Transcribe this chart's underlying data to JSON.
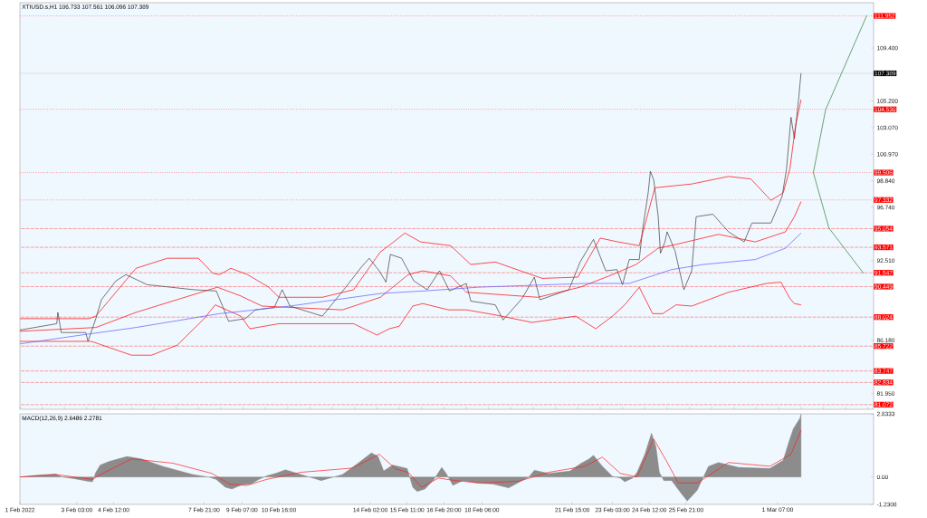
{
  "chart_data": [
    {
      "type": "line",
      "title": "XTIUSD.s,H1  106.733 107.561 106.096 107.389",
      "xlim": [
        "2022-02-01T00:00",
        "2022-03-04T21:00"
      ],
      "ylim": [
        80.7,
        113.0
      ],
      "tick_labels": "y",
      "yticks": [
        {
          "value": 109.4,
          "label": "109.400"
        },
        {
          "value": 105.2,
          "label": "105.200"
        },
        {
          "value": 103.07,
          "label": "103.070"
        },
        {
          "value": 100.97,
          "label": "100.970"
        },
        {
          "value": 98.84,
          "label": "98.840"
        },
        {
          "value": 96.74,
          "label": "96.740"
        },
        {
          "value": 92.51,
          "label": "92.510"
        },
        {
          "value": 86.18,
          "label": "86.180"
        },
        {
          "value": 81.95,
          "label": "81.950"
        }
      ],
      "series": [
        {
          "color": "#3c3c3c",
          "x": [
            "2022-02-01T00:00",
            "2022-02-02T09:00",
            "2022-02-02T10:00",
            "2022-02-02T13:00",
            "2022-02-03T11:00",
            "2022-02-03T13:00",
            "2022-02-03T20:00",
            "2022-02-04T01:00",
            "2022-02-04T14:00",
            "2022-02-04T23:00",
            "2022-02-05T18:00",
            "2022-02-07T12:00",
            "2022-02-08T08:00",
            "2022-02-08T14:00",
            "2022-02-08T19:00",
            "2022-02-09T10:00",
            "2022-02-09T19:00",
            "2022-02-10T12:00",
            "2022-02-10T19:00",
            "2022-02-11T02:00",
            "2022-02-12T07:00",
            "2022-02-13T04:00",
            "2022-02-13T18:00",
            "2022-02-14T01:00",
            "2022-02-14T10:00",
            "2022-02-14T16:00",
            "2022-02-14T20:00",
            "2022-02-15T06:00",
            "2022-02-15T17:00",
            "2022-02-16T05:00",
            "2022-02-16T16:00",
            "2022-02-17T01:00",
            "2022-02-17T16:00",
            "2022-02-17T20:00",
            "2022-02-18T18:00",
            "2022-02-19T01:00",
            "2022-02-19T18:00",
            "2022-02-20T05:00",
            "2022-02-20T10:00",
            "2022-02-21T12:00",
            "2022-02-21T22:00",
            "2022-02-22T10:00",
            "2022-02-22T21:00",
            "2022-02-23T07:00",
            "2022-02-23T12:00",
            "2022-02-23T18:00",
            "2022-02-24T03:00",
            "2022-02-24T06:00",
            "2022-02-24T11:00",
            "2022-02-24T13:00",
            "2022-02-24T16:00",
            "2022-02-24T20:00",
            "2022-02-24T22:00",
            "2022-02-25T02:00",
            "2022-02-25T04:00",
            "2022-02-25T11:00",
            "2022-02-25T19:00",
            "2022-02-26T02:00",
            "2022-02-26T06:00",
            "2022-02-26T21:00",
            "2022-02-27T11:00",
            "2022-02-28T01:00",
            "2022-02-28T08:00",
            "2022-03-01T01:00",
            "2022-03-01T11:00",
            "2022-03-01T15:00",
            "2022-03-01T19:00",
            "2022-03-01T22:00",
            "2022-03-02T02:00",
            "2022-03-02T03:00",
            "2022-03-02T04:00"
          ],
          "values": [
            87.0,
            87.5,
            88.4,
            86.8,
            86.8,
            86.1,
            87.9,
            89.4,
            90.9,
            91.4,
            90.6,
            90.2,
            90.1,
            88.8,
            87.7,
            87.9,
            88.6,
            88.8,
            90.2,
            88.9,
            88.1,
            90.4,
            92.0,
            92.7,
            91.7,
            90.8,
            93.0,
            92.7,
            90.9,
            90.2,
            91.7,
            90.1,
            90.7,
            89.3,
            89.0,
            87.8,
            89.5,
            91.2,
            89.4,
            90.2,
            92.4,
            94.2,
            91.7,
            91.8,
            90.6,
            92.6,
            92.6,
            95.0,
            97.9,
            99.6,
            98.9,
            96.0,
            93.1,
            94.0,
            94.8,
            93.3,
            90.2,
            91.7,
            96.0,
            96.2,
            94.8,
            94.0,
            95.5,
            95.5,
            97.6,
            99.8,
            103.9,
            102.2,
            105.5,
            106.5,
            107.4
          ]
        },
        {
          "color": "#ff0000",
          "x": [
            "2022-02-01T00:00",
            "2022-02-03T14:00",
            "2022-02-03T20:00",
            "2022-02-05T08:00",
            "2022-02-06T12:00",
            "2022-02-07T16:00",
            "2022-02-08T05:00",
            "2022-02-08T11:00",
            "2022-02-08T21:00",
            "2022-02-09T12:00",
            "2022-02-10T07:00",
            "2022-02-10T16:00",
            "2022-02-12T07:00",
            "2022-02-13T11:00",
            "2022-02-14T11:00",
            "2022-02-14T23:00",
            "2022-02-15T09:00",
            "2022-02-15T23:00",
            "2022-02-17T02:00",
            "2022-02-17T20:00",
            "2022-02-18T18:00",
            "2022-02-20T12:00",
            "2022-02-21T20:00",
            "2022-02-22T16:00",
            "2022-02-23T08:00",
            "2022-02-24T03:00",
            "2022-02-24T17:00",
            "2022-02-26T02:00",
            "2022-02-27T11:00",
            "2022-02-28T07:00",
            "2022-03-01T01:00",
            "2022-03-01T12:00",
            "2022-03-01T18:00",
            "2022-03-01T23:00",
            "2022-03-02T04:00"
          ],
          "values": [
            87.9,
            87.9,
            88.1,
            91.9,
            92.7,
            92.7,
            91.5,
            91.4,
            91.9,
            91.4,
            90.4,
            89.6,
            89.6,
            90.2,
            93.2,
            94.0,
            94.7,
            94.0,
            93.7,
            92.2,
            92.4,
            91.1,
            91.2,
            94.3,
            94.0,
            93.7,
            98.3,
            98.6,
            99.2,
            99.0,
            97.3,
            97.9,
            99.8,
            103.2,
            105.3
          ]
        },
        {
          "color": "#ff0000",
          "x": [
            "2022-02-01T00:00",
            "2022-02-03T20:00",
            "2022-02-05T08:00",
            "2022-02-08T09:00",
            "2022-02-09T06:00",
            "2022-02-10T01:00",
            "2022-02-13T01:00",
            "2022-02-14T11:00",
            "2022-02-15T12:00",
            "2022-02-16T01:00",
            "2022-02-17T02:00",
            "2022-02-17T16:00",
            "2022-02-20T08:00",
            "2022-02-21T22:00",
            "2022-02-23T03:00",
            "2022-02-24T00:00",
            "2022-02-24T20:00",
            "2022-02-25T12:00",
            "2022-02-27T02:00",
            "2022-02-28T11:00",
            "2022-03-01T14:00",
            "2022-03-01T22:00",
            "2022-03-02T04:00"
          ],
          "values": [
            86.9,
            87.2,
            88.4,
            90.4,
            89.7,
            88.9,
            88.6,
            89.6,
            91.4,
            91.7,
            91.3,
            90.0,
            89.6,
            90.4,
            91.4,
            92.2,
            93.5,
            93.8,
            94.6,
            94.0,
            94.8,
            96.0,
            97.2
          ]
        },
        {
          "color": "#ff0000",
          "x": [
            "2022-02-01T00:00",
            "2022-02-03T16:00",
            "2022-02-05T04:00",
            "2022-02-05T22:00",
            "2022-02-06T21:00",
            "2022-02-07T21:00",
            "2022-02-08T07:00",
            "2022-02-09T06:00",
            "2022-02-09T14:00",
            "2022-02-10T16:00",
            "2022-02-13T11:00",
            "2022-02-14T08:00",
            "2022-02-14T19:00",
            "2022-02-15T04:00",
            "2022-02-15T16:00",
            "2022-02-16T01:00",
            "2022-02-17T00:00",
            "2022-02-17T16:00",
            "2022-02-18T18:00",
            "2022-02-20T03:00",
            "2022-02-21T18:00",
            "2022-02-22T12:00",
            "2022-02-23T03:00",
            "2022-02-23T14:00",
            "2022-02-24T03:00",
            "2022-02-24T15:00",
            "2022-02-25T00:00",
            "2022-02-25T12:00",
            "2022-02-26T02:00",
            "2022-02-27T11:00",
            "2022-02-28T21:00",
            "2022-03-01T10:00",
            "2022-03-01T18:00",
            "2022-03-01T22:00",
            "2022-03-02T04:00"
          ],
          "values": [
            86.1,
            86.1,
            85.0,
            85.0,
            85.8,
            87.9,
            89.0,
            88.1,
            87.1,
            87.5,
            87.5,
            86.6,
            87.1,
            87.3,
            88.9,
            89.1,
            88.6,
            88.6,
            88.2,
            87.6,
            88.1,
            87.1,
            88.1,
            89.0,
            90.4,
            88.3,
            88.3,
            89.0,
            88.9,
            90.0,
            90.7,
            90.8,
            89.5,
            89.1,
            89.0
          ]
        },
        {
          "color": "#5a5aff",
          "x": [
            "2022-02-01T00:00",
            "2022-02-03T07:00",
            "2022-02-05T08:00",
            "2022-02-08T11:00",
            "2022-02-11T02:00",
            "2022-02-14T11:00",
            "2022-02-16T01:00",
            "2022-02-18T03:00",
            "2022-02-22T02:00",
            "2022-02-23T18:00",
            "2022-02-25T08:00",
            "2022-02-26T12:00",
            "2022-02-28T11:00",
            "2022-03-01T14:00",
            "2022-03-02T04:00"
          ],
          "values": [
            85.9,
            86.6,
            87.2,
            88.3,
            88.9,
            89.9,
            90.1,
            90.4,
            90.7,
            90.7,
            91.8,
            92.2,
            92.6,
            93.5,
            94.7
          ]
        },
        {
          "color": "#2e7d32",
          "x": [
            "2022-03-02T15:00",
            "2022-03-03T02:00",
            "2022-03-04T15:00"
          ],
          "values": [
            99.5,
            104.5,
            112.0
          ]
        },
        {
          "color": "#2e7d32",
          "x": [
            "2022-03-02T15:00",
            "2022-03-03T05:00",
            "2022-03-04T12:00"
          ],
          "values": [
            99.5,
            95.1,
            91.5
          ]
        }
      ],
      "ref_lines": [
        {
          "axis": "y",
          "value": 111.952,
          "label": "111.952",
          "color": "#ff6060",
          "line_style": "dotted"
        },
        {
          "axis": "y",
          "value": 107.389,
          "label": "107.389",
          "color": "#c8c8c8",
          "line_style": "solid"
        },
        {
          "axis": "y",
          "value": 104.53,
          "label": "104.530",
          "color": "#ff6060",
          "line_style": "dotted"
        },
        {
          "axis": "y",
          "value": 99.506,
          "label": "99.506",
          "color": "#ff6060",
          "line_style": "dotted"
        },
        {
          "axis": "y",
          "value": 97.332,
          "label": "97.332",
          "color": "#ff6060",
          "line_style": "dotted"
        },
        {
          "axis": "y",
          "value": 95.054,
          "label": "95.054",
          "color": "#ff6060",
          "line_style": "dashed"
        },
        {
          "axis": "y",
          "value": 93.571,
          "label": "93.571",
          "color": "#ff6060",
          "line_style": "dashed"
        },
        {
          "axis": "y",
          "value": 91.547,
          "label": "91.547",
          "color": "#ff6060",
          "line_style": "dashed"
        },
        {
          "axis": "y",
          "value": 90.449,
          "label": "90.449",
          "color": "#ff6060",
          "line_style": "dashed"
        },
        {
          "axis": "y",
          "value": 88.024,
          "label": "88.024",
          "color": "#ff6060",
          "line_style": "dashed"
        },
        {
          "axis": "y",
          "value": 85.722,
          "label": "85.722",
          "color": "#ff6060",
          "line_style": "dashed"
        },
        {
          "axis": "y",
          "value": 83.747,
          "label": "83.747",
          "color": "#ff6060",
          "line_style": "dashed"
        },
        {
          "axis": "y",
          "value": 82.834,
          "label": "82.834",
          "color": "#ff6060",
          "line_style": "dashed"
        },
        {
          "axis": "y",
          "value": 81.072,
          "label": "81.072",
          "color": "#ff6060",
          "line_style": "dashed"
        }
      ]
    },
    {
      "type": "area",
      "title": "MACD(12,26,9) 2.6486 2.2781",
      "xlim": [
        "2022-02-01T00:00",
        "2022-03-04T21:00"
      ],
      "ylim": [
        -1.2308,
        2.8333
      ],
      "xticks": [
        {
          "value": "2022-02-01T00:00",
          "label": "1 Feb 2022"
        },
        {
          "value": "2022-02-03T03:00",
          "label": "3 Feb 03:00"
        },
        {
          "value": "2022-02-04T12:00",
          "label": "4 Feb 12:00"
        },
        {
          "value": "2022-02-07T21:00",
          "label": "7 Feb 21:00"
        },
        {
          "value": "2022-02-09T07:00",
          "label": "9 Feb 07:00"
        },
        {
          "value": "2022-02-10T16:00",
          "label": "10 Feb 16:00"
        },
        {
          "value": "2022-02-14T02:00",
          "label": "14 Feb 02:00"
        },
        {
          "value": "2022-02-15T11:00",
          "label": "15 Feb 11:00"
        },
        {
          "value": "2022-02-16T20:00",
          "label": "16 Feb 20:00"
        },
        {
          "value": "2022-02-18T06:00",
          "label": "18 Feb 06:00"
        },
        {
          "value": "2022-02-21T15:00",
          "label": "21 Feb 15:00"
        },
        {
          "value": "2022-02-23T03:00",
          "label": "23 Feb 03:00"
        },
        {
          "value": "2022-02-24T12:00",
          "label": "24 Feb 12:00"
        },
        {
          "value": "2022-02-25T21:00",
          "label": "25 Feb 21:00"
        },
        {
          "value": "2022-03-01T07:00",
          "label": "1 Mar 07:00"
        }
      ],
      "yticks": [
        {
          "value": -1.2308,
          "label": "-1.2308"
        },
        {
          "value": 0,
          "label": "0.00"
        },
        {
          "value": 2.8333,
          "label": "2.8333"
        }
      ],
      "series": [
        {
          "color": "#8c8c8c",
          "x": [
            "2022-02-01T00:00",
            "2022-02-01T15:00",
            "2022-02-02T08:00",
            "2022-02-02T14:00",
            "2022-02-03T01:00",
            "2022-02-03T13:00",
            "2022-02-03T17:00",
            "2022-02-03T20:00",
            "2022-02-04T00:00",
            "2022-02-04T08:00",
            "2022-02-05T00:00",
            "2022-02-05T13:00",
            "2022-02-06T08:00",
            "2022-02-07T11:00",
            "2022-02-08T01:00",
            "2022-02-08T08:00",
            "2022-02-08T16:00",
            "2022-02-08T22:00",
            "2022-02-09T07:00",
            "2022-02-09T15:00",
            "2022-02-09T22:00",
            "2022-02-10T05:00",
            "2022-02-10T13:00",
            "2022-02-10T22:00",
            "2022-02-11T12:00",
            "2022-02-12T06:00",
            "2022-02-13T01:00",
            "2022-02-13T15:00",
            "2022-02-14T03:00",
            "2022-02-14T09:00",
            "2022-02-14T14:00",
            "2022-02-14T22:00",
            "2022-02-15T03:00",
            "2022-02-15T11:00",
            "2022-02-15T16:00",
            "2022-02-15T20:00",
            "2022-02-16T03:00",
            "2022-02-16T11:00",
            "2022-02-16T18:00",
            "2022-02-16T22:00",
            "2022-02-17T04:00",
            "2022-02-17T13:00",
            "2022-02-18T01:00",
            "2022-02-18T16:00",
            "2022-02-19T06:00",
            "2022-02-20T00:00",
            "2022-02-20T05:00",
            "2022-02-20T18:00",
            "2022-02-21T13:00",
            "2022-02-21T22:00",
            "2022-02-22T06:00",
            "2022-02-22T10:00",
            "2022-02-22T18:00",
            "2022-02-23T03:00",
            "2022-02-23T10:00",
            "2022-02-23T14:00",
            "2022-02-23T21:00",
            "2022-02-24T01:00",
            "2022-02-24T08:00",
            "2022-02-24T14:00",
            "2022-02-24T18:00",
            "2022-02-24T21:00",
            "2022-02-25T01:00",
            "2022-02-25T08:00",
            "2022-02-25T16:00",
            "2022-02-25T22:00",
            "2022-02-26T07:00",
            "2022-02-26T17:00",
            "2022-02-27T02:00",
            "2022-02-27T20:00",
            "2022-03-01T00:00",
            "2022-03-01T12:00",
            "2022-03-01T17:00",
            "2022-03-01T21:00",
            "2022-03-02T03:00",
            "2022-03-02T04:00"
          ],
          "values": [
            0.0,
            0.08,
            0.13,
            0.0,
            -0.08,
            -0.19,
            -0.22,
            0.21,
            0.54,
            0.7,
            0.92,
            0.81,
            0.48,
            0.11,
            0.0,
            -0.11,
            -0.46,
            -0.54,
            -0.35,
            -0.32,
            -0.11,
            0.05,
            0.16,
            0.32,
            0.11,
            -0.16,
            0.11,
            0.62,
            1.08,
            0.92,
            0.27,
            0.54,
            0.48,
            0.38,
            -0.46,
            -0.65,
            -0.54,
            -0.11,
            0.43,
            0.16,
            -0.38,
            -0.16,
            -0.27,
            -0.32,
            -0.49,
            0.0,
            0.3,
            0.16,
            0.27,
            0.59,
            0.81,
            0.97,
            0.48,
            0.03,
            -0.05,
            -0.22,
            -0.05,
            0.21,
            1.02,
            1.97,
            1.35,
            0.21,
            -0.16,
            -0.16,
            -0.7,
            -1.08,
            -0.59,
            0.48,
            0.65,
            0.43,
            0.38,
            0.75,
            1.56,
            2.16,
            2.64,
            2.83
          ]
        },
        {
          "type": "line",
          "color": "#ff2020",
          "x": [
            "2022-02-01T00:00",
            "2022-02-02T08:00",
            "2022-02-03T17:00",
            "2022-02-04T04:00",
            "2022-02-05T04:00",
            "2022-02-06T17:00",
            "2022-02-08T04:00",
            "2022-02-08T20:00",
            "2022-02-09T11:00",
            "2022-02-10T05:00",
            "2022-02-11T12:00",
            "2022-02-13T10:00",
            "2022-02-14T10:00",
            "2022-02-15T01:00",
            "2022-02-15T12:00",
            "2022-02-16T00:00",
            "2022-02-16T15:00",
            "2022-02-17T06:00",
            "2022-02-18T05:00",
            "2022-02-19T15:00",
            "2022-02-20T18:00",
            "2022-02-22T02:00",
            "2022-02-22T18:00",
            "2022-02-23T10:00",
            "2022-02-24T01:00",
            "2022-02-24T16:00",
            "2022-02-25T03:00",
            "2022-02-25T14:00",
            "2022-02-26T07:00",
            "2022-02-27T11:00",
            "2022-03-01T00:00",
            "2022-03-01T19:00",
            "2022-03-02T04:00"
          ],
          "values": [
            0.0,
            0.11,
            -0.11,
            0.21,
            0.81,
            0.62,
            0.16,
            -0.32,
            -0.38,
            -0.11,
            0.21,
            0.4,
            1.02,
            0.35,
            0.21,
            -0.46,
            -0.05,
            -0.16,
            -0.27,
            -0.19,
            0.21,
            0.48,
            0.89,
            0.16,
            0.0,
            1.7,
            0.75,
            -0.27,
            -0.27,
            0.65,
            0.48,
            1.02,
            2.1
          ]
        }
      ]
    }
  ]
}
